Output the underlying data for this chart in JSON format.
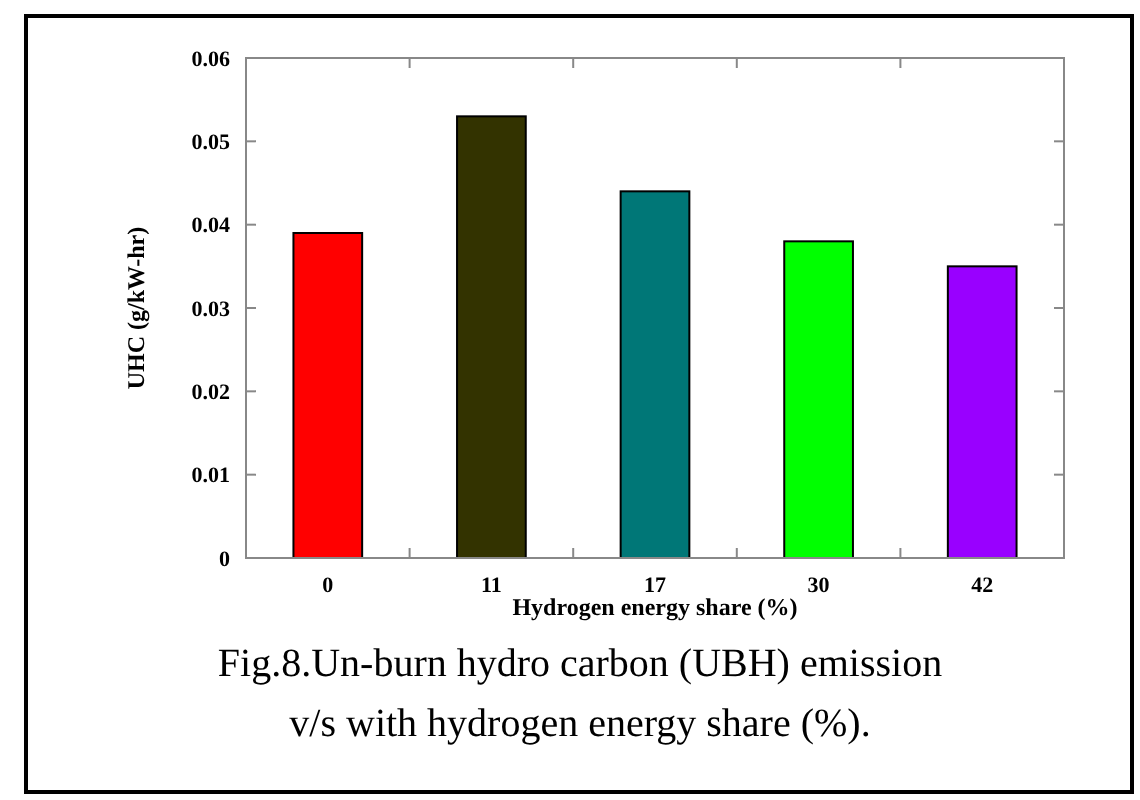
{
  "chart_data": {
    "type": "bar",
    "xlabel": "Hydrogen energy share (%)",
    "ylabel": "UHC (g/kW-hr)",
    "categories": [
      "0",
      "11",
      "17",
      "30",
      "42"
    ],
    "values": [
      0.039,
      0.053,
      0.044,
      0.038,
      0.035
    ],
    "colors": [
      "#ff0000",
      "#333300",
      "#007777",
      "#00ff00",
      "#9900ff"
    ],
    "ylim": [
      0,
      0.06
    ],
    "yticks": [
      {
        "value": 0,
        "label": "0"
      },
      {
        "value": 0.01,
        "label": "0.01"
      },
      {
        "value": 0.02,
        "label": "0.02"
      },
      {
        "value": 0.03,
        "label": "0.03"
      },
      {
        "value": 0.04,
        "label": "0.04"
      },
      {
        "value": 0.05,
        "label": "0.05"
      },
      {
        "value": 0.06,
        "label": "0.06"
      }
    ],
    "grid": false,
    "annotations": [
      "Fig.8.Un-burn hydro carbon (UBH) emission v/s with hydrogen energy share (%)."
    ]
  }
}
